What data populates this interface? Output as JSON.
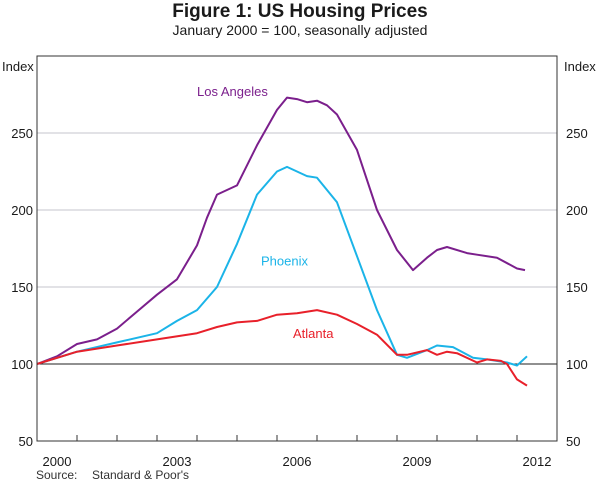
{
  "chart_data": {
    "type": "line",
    "title": "Figure 1: US Housing Prices",
    "subtitle": "January 2000 = 100, seasonally adjusted",
    "ylabel_left": "Index",
    "ylabel_right": "Index",
    "xlabel": "",
    "xlim": [
      2000,
      2013
    ],
    "ylim": [
      50,
      300
    ],
    "x_tick_labels": [
      "2000",
      "2003",
      "2006",
      "2009",
      "2012"
    ],
    "x_tick_label_years": [
      2000,
      2003,
      2006,
      2009,
      2012
    ],
    "x_minor_ticks": [
      2001,
      2002,
      2003,
      2004,
      2005,
      2006,
      2007,
      2008,
      2009,
      2010,
      2011,
      2012
    ],
    "y_ticks": [
      50,
      100,
      150,
      200,
      250
    ],
    "y_tick_labels": [
      "50",
      "100",
      "150",
      "200",
      "250"
    ],
    "gridlines": [
      150,
      200,
      250
    ],
    "baseline": 100,
    "grid": true,
    "legend": "inline labels",
    "series": [
      {
        "name": "Los Angeles",
        "color": "#7b1f8c",
        "label_pos": {
          "x": 2004.0,
          "y": 274
        },
        "x": [
          2000.0,
          2000.5,
          2001.0,
          2001.5,
          2002.0,
          2002.5,
          2003.0,
          2003.5,
          2004.0,
          2004.25,
          2004.5,
          2005.0,
          2005.5,
          2006.0,
          2006.25,
          2006.5,
          2006.75,
          2007.0,
          2007.25,
          2007.5,
          2008.0,
          2008.5,
          2009.0,
          2009.4,
          2009.75,
          2010.0,
          2010.25,
          2010.75,
          2011.0,
          2011.5,
          2012.0,
          2012.2
        ],
        "values": [
          100,
          105,
          113,
          116,
          123,
          134,
          145,
          155,
          177,
          195,
          210,
          216,
          242,
          265,
          273,
          272,
          270,
          271,
          268,
          262,
          239,
          200,
          174,
          161,
          169,
          174,
          176,
          172,
          171,
          169,
          162,
          161
        ]
      },
      {
        "name": "Phoenix",
        "color": "#1bb4e8",
        "label_pos": {
          "x": 2005.6,
          "y": 164
        },
        "x": [
          2000.0,
          2001.0,
          2002.0,
          2003.0,
          2003.5,
          2004.0,
          2004.5,
          2005.0,
          2005.5,
          2006.0,
          2006.25,
          2006.5,
          2006.75,
          2007.0,
          2007.5,
          2008.0,
          2008.5,
          2009.0,
          2009.25,
          2009.75,
          2010.0,
          2010.4,
          2010.9,
          2011.25,
          2011.75,
          2012.0,
          2012.25
        ],
        "values": [
          100,
          108,
          114,
          120,
          128,
          135,
          150,
          178,
          210,
          225,
          228,
          225,
          222,
          221,
          205,
          170,
          135,
          106,
          104,
          109,
          112,
          111,
          104,
          103,
          101,
          99,
          105
        ]
      },
      {
        "name": "Atlanta",
        "color": "#e8202a",
        "label_pos": {
          "x": 2006.4,
          "y": 117
        },
        "x": [
          2000.0,
          2001.0,
          2002.0,
          2003.0,
          2004.0,
          2004.5,
          2005.0,
          2005.5,
          2006.0,
          2006.5,
          2007.0,
          2007.5,
          2008.0,
          2008.5,
          2009.0,
          2009.25,
          2009.75,
          2010.0,
          2010.25,
          2010.5,
          2011.0,
          2011.25,
          2011.6,
          2011.75,
          2012.0,
          2012.25
        ],
        "values": [
          100,
          108,
          112,
          116,
          120,
          124,
          127,
          128,
          132,
          133,
          135,
          132,
          126,
          119,
          106,
          106,
          109,
          106,
          108,
          107,
          101,
          103,
          102,
          100,
          90,
          86
        ]
      }
    ],
    "source_label": "Source:",
    "source_text": "Standard & Poor's"
  }
}
